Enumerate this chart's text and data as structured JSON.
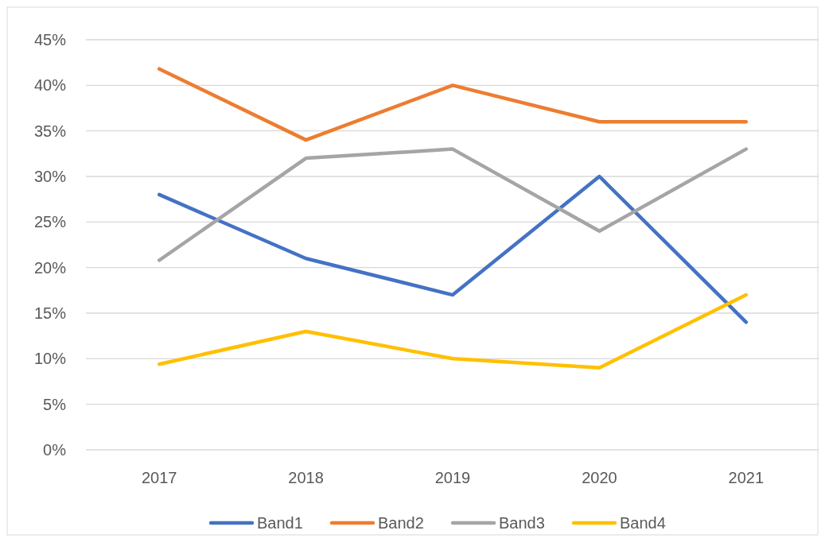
{
  "chart_data": {
    "type": "line",
    "categories": [
      "2017",
      "2018",
      "2019",
      "2020",
      "2021"
    ],
    "series": [
      {
        "name": "Band1",
        "color": "#4472c4",
        "values": [
          28,
          21,
          17,
          30,
          14
        ]
      },
      {
        "name": "Band2",
        "color": "#ed7d31",
        "values": [
          41.8,
          34,
          40,
          36,
          36
        ]
      },
      {
        "name": "Band3",
        "color": "#a5a5a5",
        "values": [
          20.8,
          32,
          33,
          24,
          33
        ]
      },
      {
        "name": "Band4",
        "color": "#ffc000",
        "values": [
          9.4,
          13,
          10,
          9,
          17
        ]
      }
    ],
    "ylim": [
      0,
      45
    ],
    "yticks": [
      {
        "value": 0,
        "label": "0%"
      },
      {
        "value": 5,
        "label": "5%"
      },
      {
        "value": 10,
        "label": "10%"
      },
      {
        "value": 15,
        "label": "15%"
      },
      {
        "value": 20,
        "label": "20%"
      },
      {
        "value": 25,
        "label": "25%"
      },
      {
        "value": 30,
        "label": "30%"
      },
      {
        "value": 35,
        "label": "35%"
      },
      {
        "value": 40,
        "label": "40%"
      },
      {
        "value": 45,
        "label": "45%"
      }
    ],
    "grid": "y",
    "legend": "bottom",
    "marker": "none",
    "line_style": "solid"
  }
}
